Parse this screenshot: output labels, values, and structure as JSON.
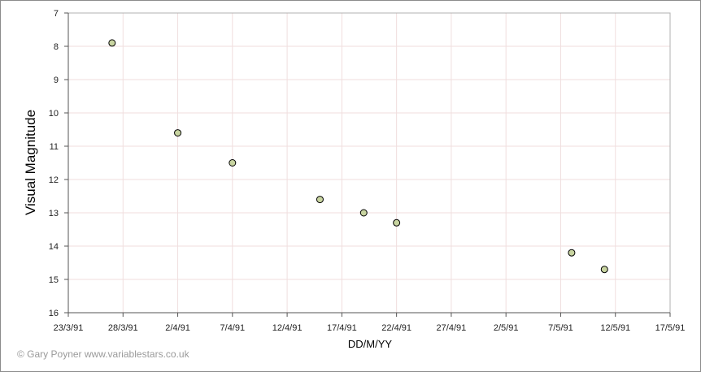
{
  "chart_data": {
    "type": "scatter",
    "title": "",
    "xlabel": "DD/M/YY",
    "ylabel": "Visual Magnitude",
    "x_ticks": [
      "23/3/91",
      "28/3/91",
      "2/4/91",
      "7/4/91",
      "12/4/91",
      "17/4/91",
      "22/4/91",
      "27/4/91",
      "2/5/91",
      "7/5/91",
      "12/5/91",
      "17/5/91"
    ],
    "x_range": [
      "1991-03-23",
      "1991-05-17"
    ],
    "y_ticks": [
      7,
      8,
      9,
      10,
      11,
      12,
      13,
      14,
      15,
      16
    ],
    "ylim": [
      7,
      16
    ],
    "y_inverted": true,
    "grid": true,
    "marker_color": "#c8d4a0",
    "marker_edge_color": "#000000",
    "grid_color": "#f0dede",
    "series": [
      {
        "points": [
          {
            "x": "1991-03-27",
            "y": 7.9
          },
          {
            "x": "1991-04-02",
            "y": 10.6
          },
          {
            "x": "1991-04-07",
            "y": 11.5
          },
          {
            "x": "1991-04-15",
            "y": 12.6
          },
          {
            "x": "1991-04-19",
            "y": 13.0
          },
          {
            "x": "1991-04-22",
            "y": 13.3
          },
          {
            "x": "1991-05-08",
            "y": 14.2
          },
          {
            "x": "1991-05-11",
            "y": 14.7
          }
        ]
      }
    ]
  },
  "copyright": "© Gary Poyner  www.variablestars.co.uk"
}
